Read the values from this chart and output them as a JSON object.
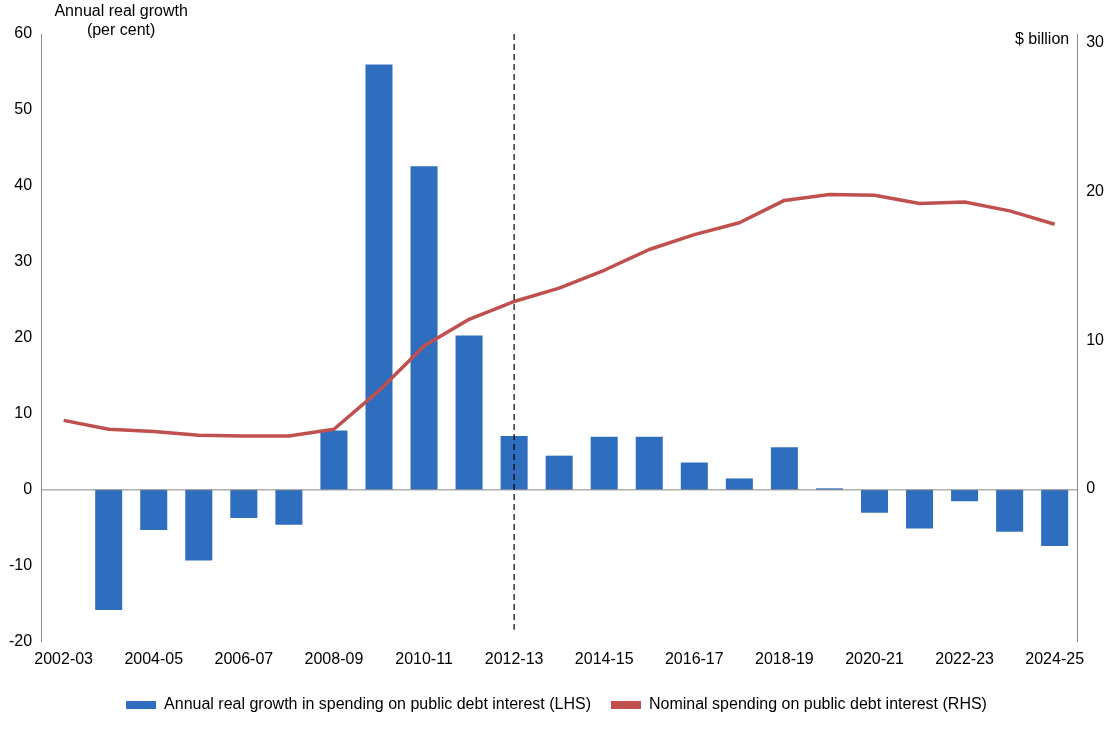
{
  "chart_data": {
    "type": "bar",
    "ylabel": "Annual real growth (per cent)",
    "y2label": "$ billion",
    "categories": [
      "2002-03",
      null,
      "2004-05",
      null,
      "2006-07",
      null,
      "2008-09",
      null,
      "2010-11",
      null,
      "2012-13",
      null,
      "2014-15",
      null,
      "2016-17",
      null,
      "2018-19",
      null,
      "2020-21",
      null,
      "2022-23",
      null,
      "2024-25"
    ],
    "series": [
      {
        "name": "Annual real growth in spending on public debt interest (LHS)",
        "color": "#2f6ebf",
        "values": [
          null,
          -15.8,
          -5.3,
          -9.3,
          -3.7,
          -4.6,
          7.8,
          56,
          42.6,
          20.3,
          7.1,
          4.5,
          7.0,
          7.0,
          3.6,
          1.5,
          5.6,
          0.2,
          -3.0,
          -5.1,
          -1.5,
          -5.5,
          -7.4
        ]
      },
      {
        "name": "Nominal spending on public debt interest (RHS)",
        "type": "line",
        "axis": "y2",
        "color": "#c0504d",
        "values": [
          4.6,
          4.0,
          3.85,
          3.6,
          3.55,
          3.55,
          4.0,
          6.6,
          9.6,
          11.4,
          12.6,
          13.5,
          14.7,
          16.1,
          17.1,
          17.9,
          19.4,
          19.8,
          19.75,
          19.2,
          19.3,
          18.7,
          17.8
        ]
      }
    ],
    "ylim": [
      -20,
      60
    ],
    "yticks": [
      -20,
      -10,
      0,
      10,
      20,
      30,
      40,
      50,
      60
    ],
    "y2lim": [
      -10.3,
      30.6
    ],
    "y2ticks": [
      0,
      10,
      20,
      30
    ],
    "ref_lines": [
      {
        "axis": "x",
        "value": "2012-13",
        "line_style": "dashed",
        "color": "#000000"
      }
    ],
    "legend": "bottom",
    "grid": false,
    "marker": "none",
    "line_style": "solid"
  }
}
